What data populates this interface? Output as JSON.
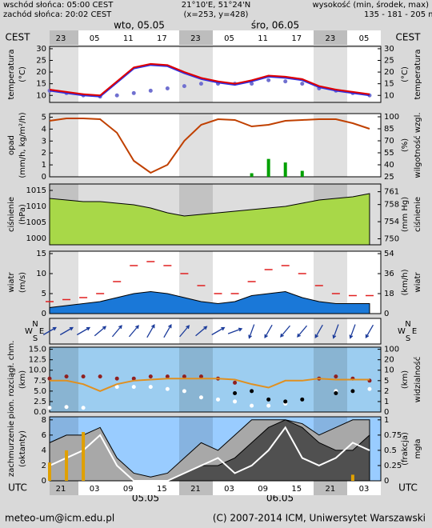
{
  "header": {
    "sunrise": "wschód słońca: 05:00 CEST",
    "sunset": "zachód słońca: 20:02 CEST",
    "coords": "21°10'E, 51°24'N",
    "grid": "(x=253, y=428)",
    "elev_label": "wysokość (min, środek, max)",
    "elev": "135 - 181 - 205 m",
    "day1": "wto, 05.05",
    "day2": "śro, 06.05"
  },
  "top_axis": {
    "label": "CEST",
    "ticks": [
      {
        "value": 2,
        "label": "23"
      },
      {
        "value": 8,
        "label": "05"
      },
      {
        "value": 14,
        "label": "11"
      },
      {
        "value": 20,
        "label": "17"
      },
      {
        "value": 26,
        "label": "23"
      },
      {
        "value": 32,
        "label": "05"
      },
      {
        "value": 38,
        "label": "11"
      },
      {
        "value": 44,
        "label": "17"
      },
      {
        "value": 50,
        "label": "23"
      },
      {
        "value": 56,
        "label": "05"
      }
    ]
  },
  "bottom_axis": {
    "label": "UTC",
    "ticks": [
      {
        "value": 2,
        "label": "21"
      },
      {
        "value": 8,
        "label": "03"
      },
      {
        "value": 14,
        "label": "09"
      },
      {
        "value": 20,
        "label": "15"
      },
      {
        "value": 26,
        "label": "21"
      },
      {
        "value": 32,
        "label": "03"
      },
      {
        "value": 38,
        "label": "09"
      },
      {
        "value": 44,
        "label": "15"
      },
      {
        "value": 50,
        "label": "21"
      },
      {
        "value": 56,
        "label": "03"
      }
    ],
    "date1": "05.05",
    "date2": "06.05"
  },
  "footer": {
    "email": "meteo-um@icm.edu.pl",
    "copyright": "(C) 2007-2014 ICM, Uniwersytet Warszawski"
  },
  "chart_data": [
    {
      "type": "line",
      "ylabel": [
        "temperatura",
        "(°C)"
      ],
      "y2label": [
        "(°C)",
        "temperatura"
      ],
      "background": "#ffffff",
      "xlim": [
        0,
        59
      ],
      "ylim": [
        7,
        31
      ],
      "yticks": [
        30,
        25,
        20,
        15,
        10
      ],
      "y2lim": [
        7,
        31
      ],
      "y2ticks": [
        30,
        25,
        20,
        15,
        10
      ],
      "x": [
        0,
        3,
        6,
        9,
        12,
        15,
        18,
        21,
        24,
        27,
        30,
        33,
        36,
        39,
        42,
        45,
        48,
        51,
        54,
        57
      ],
      "series": [
        {
          "style": "dots",
          "color": "#7070d0",
          "values": [
            12,
            11,
            10,
            9.5,
            10,
            11,
            12,
            13,
            14,
            15,
            15,
            15,
            15,
            16.5,
            16,
            15,
            13,
            12,
            11,
            10
          ]
        },
        {
          "style": "line",
          "color": "#3030e0",
          "values": [
            12,
            11,
            10,
            9.5,
            15.5,
            21.5,
            23,
            22.5,
            19.5,
            17,
            15.5,
            14.5,
            16,
            18,
            17.5,
            16.5,
            13.5,
            12,
            11,
            10
          ]
        },
        {
          "style": "line",
          "color": "#e00000",
          "values": [
            12.5,
            11.5,
            10.5,
            10,
            16,
            22,
            23.5,
            23,
            20,
            17.5,
            16,
            15,
            16.5,
            18.5,
            18,
            17,
            14,
            12.5,
            11.5,
            10.5
          ]
        }
      ]
    },
    {
      "type": "line",
      "ylabel": [
        "opad",
        "(mm/h, kg/m²/h)"
      ],
      "y2label": [
        "(%)",
        "wilgotność wzgl."
      ],
      "background": "#ffffff",
      "xlim": [
        0,
        59
      ],
      "ylim": [
        0,
        5.3
      ],
      "yticks": [
        5,
        4,
        3,
        2,
        1,
        0
      ],
      "y2lim": [
        25,
        104
      ],
      "y2ticks": [
        100,
        85,
        70,
        55,
        40,
        25
      ],
      "x": [
        0,
        3,
        6,
        9,
        12,
        15,
        18,
        21,
        24,
        27,
        30,
        33,
        36,
        39,
        42,
        45,
        48,
        51,
        54,
        57
      ],
      "series": [
        {
          "style": "bars",
          "color": "#00a000",
          "values": [
            0,
            0,
            0,
            0,
            0,
            0,
            0,
            0,
            0,
            0,
            0,
            0,
            0.3,
            1.5,
            1.2,
            0.5,
            0,
            0,
            0,
            0
          ]
        },
        {
          "style": "line",
          "color": "#c04000",
          "axis": "y2",
          "values": [
            95,
            98,
            98,
            97,
            80,
            45,
            30,
            40,
            70,
            90,
            97,
            96,
            88,
            90,
            95,
            96,
            97,
            97,
            92,
            85
          ]
        }
      ]
    },
    {
      "type": "line",
      "ylabel": [
        "ciśnienie",
        "(hPa)"
      ],
      "y2label": [
        "(mm Hg)",
        "ciśnienie"
      ],
      "background": "#dddddd",
      "xlim": [
        0,
        59
      ],
      "ylim": [
        998,
        1017
      ],
      "yticks": [
        1015,
        1010,
        1005,
        1000
      ],
      "y2lim": [
        748.6,
        762.8
      ],
      "y2ticks": [
        761,
        758,
        754,
        750
      ],
      "x": [
        0,
        3,
        6,
        9,
        12,
        15,
        18,
        21,
        24,
        27,
        30,
        33,
        36,
        39,
        42,
        45,
        48,
        51,
        54,
        57
      ],
      "series": [
        {
          "style": "area",
          "color": "#a8d848",
          "values": [
            1012.5,
            1012,
            1011.5,
            1011.5,
            1011,
            1010.5,
            1009.5,
            1008,
            1007,
            1007.5,
            1008,
            1008.5,
            1009,
            1009.5,
            1010,
            1011,
            1012,
            1012.5,
            1013,
            1014
          ]
        }
      ]
    },
    {
      "type": "line",
      "ylabel": [
        "wiatr",
        "(m/s)"
      ],
      "y2label": [
        "(km/h)",
        "wiatr"
      ],
      "background": "#ffffff",
      "xlim": [
        0,
        59
      ],
      "ylim": [
        0,
        15.6
      ],
      "yticks": [
        15,
        10,
        5,
        0
      ],
      "y2lim": [
        0,
        56.2
      ],
      "y2ticks": [
        54,
        36,
        18,
        0
      ],
      "x": [
        0,
        3,
        6,
        9,
        12,
        15,
        18,
        21,
        24,
        27,
        30,
        33,
        36,
        39,
        42,
        45,
        48,
        51,
        54,
        57
      ],
      "series": [
        {
          "style": "area",
          "color": "#1a78d8",
          "values": [
            1.5,
            2,
            2.5,
            3,
            4,
            5,
            5.5,
            5,
            4,
            3,
            2.5,
            3,
            4.5,
            5,
            5.5,
            4,
            3,
            2.5,
            2.5,
            2.5
          ]
        },
        {
          "style": "dashes",
          "color": "#e02020",
          "values": [
            3,
            3.5,
            4,
            5,
            8,
            12,
            13,
            12,
            10,
            7,
            5,
            5,
            8,
            11,
            12,
            10,
            7,
            5,
            4.5,
            4.5
          ]
        }
      ]
    },
    {
      "type": "vector",
      "compass": [
        "N",
        "W",
        "E",
        "S"
      ],
      "background": "#ffffff",
      "xlim": [
        0,
        59
      ],
      "color": "#1a3a9a",
      "x": [
        0,
        3,
        6,
        9,
        12,
        15,
        18,
        21,
        24,
        27,
        30,
        33,
        36,
        39,
        42,
        45,
        48,
        51,
        54,
        57
      ],
      "values": [
        60,
        60,
        60,
        50,
        40,
        40,
        30,
        30,
        40,
        50,
        60,
        70,
        200,
        210,
        220,
        220,
        210,
        200,
        200,
        210
      ]
    },
    {
      "type": "line",
      "ylabel": [
        "pion. rozciągł. chm.",
        "(km)"
      ],
      "y2label": [
        "(km)",
        "widzialność"
      ],
      "background": "#9ccdf0",
      "y2scale": "piecewise",
      "xlim": [
        0,
        59
      ],
      "ylim": [
        0,
        15.5
      ],
      "yticks": [
        {
          "value": 15,
          "label": "15.0"
        },
        12.5,
        {
          "value": 10,
          "label": "10.0"
        },
        7.5,
        {
          "value": 5,
          "label": "5.0"
        },
        2.5,
        {
          "value": 0,
          "label": "0.0"
        }
      ],
      "y2lim": [
        0,
        100
      ],
      "y2ticks": [
        100,
        20,
        10,
        5,
        2,
        1,
        0
      ],
      "x": [
        0,
        3,
        6,
        9,
        12,
        15,
        18,
        21,
        24,
        27,
        30,
        33,
        36,
        39,
        42,
        45,
        48,
        51,
        54,
        57
      ],
      "series": [
        {
          "style": "dots",
          "color": "#902020",
          "values": [
            8,
            8.5,
            8.5,
            8.5,
            8,
            8,
            8.5,
            8.5,
            8.5,
            8.5,
            8,
            7,
            null,
            null,
            null,
            null,
            8,
            8.5,
            8,
            7.5
          ]
        },
        {
          "style": "dots",
          "color": "#ffffff",
          "values": [
            1,
            1.2,
            1,
            null,
            6,
            6,
            6,
            5.5,
            5,
            3.5,
            3,
            2.5,
            1.5,
            1.5,
            2,
            null,
            null,
            5,
            5,
            5.5
          ]
        },
        {
          "style": "dots",
          "color": "#000000",
          "values": [
            null,
            null,
            null,
            null,
            null,
            null,
            null,
            null,
            null,
            null,
            null,
            4.5,
            5,
            3,
            2.5,
            3,
            null,
            4.5,
            5,
            null
          ]
        },
        {
          "style": "line",
          "color": "#e09020",
          "axis": "y2",
          "values": [
            5,
            5,
            4,
            2,
            4,
            5,
            5.5,
            6,
            6,
            6,
            6,
            5.5,
            4,
            3,
            5,
            5,
            6,
            5.5,
            5.5,
            5.5
          ]
        }
      ]
    },
    {
      "type": "line",
      "ylabel": [
        "zachmurzenie",
        "(oktanty)"
      ],
      "y2label": [
        "(frakcja)",
        "mgła"
      ],
      "background": "#99ccff",
      "xlim": [
        0,
        59
      ],
      "ylim": [
        0,
        8.4
      ],
      "yticks": [
        8,
        6,
        4,
        2,
        0
      ],
      "y2lim": [
        0,
        1.05
      ],
      "y2ticks": [
        1,
        0.75,
        0.5,
        0.25,
        0
      ],
      "x": [
        0,
        3,
        6,
        9,
        12,
        15,
        18,
        21,
        24,
        27,
        30,
        33,
        36,
        39,
        42,
        45,
        48,
        51,
        54,
        57
      ],
      "series": [
        {
          "style": "area",
          "color": "#a8a8a8",
          "values": [
            5,
            6,
            6,
            7,
            3,
            1,
            0.5,
            1,
            3,
            5,
            4,
            6,
            8,
            8,
            8,
            7.5,
            6,
            7,
            8,
            8
          ]
        },
        {
          "style": "area",
          "color": "#505050",
          "values": [
            0,
            0,
            0,
            0,
            0,
            0,
            0,
            0,
            1,
            2,
            2,
            3,
            5,
            7,
            8,
            7,
            5,
            4,
            4,
            6
          ]
        },
        {
          "style": "line",
          "color": "#ffffff",
          "values": [
            2,
            3,
            4,
            6,
            2,
            0,
            0,
            0,
            1,
            2,
            3,
            1,
            2,
            4,
            7,
            3,
            2,
            3,
            5,
            4
          ]
        },
        {
          "style": "bars",
          "color": "#e0a000",
          "axis": "y2",
          "values": [
            0.3,
            0.5,
            0.8,
            0,
            0,
            0,
            0,
            0,
            0,
            0,
            0,
            0,
            0,
            0,
            0,
            0,
            0,
            0,
            0.1,
            0
          ]
        }
      ]
    }
  ]
}
